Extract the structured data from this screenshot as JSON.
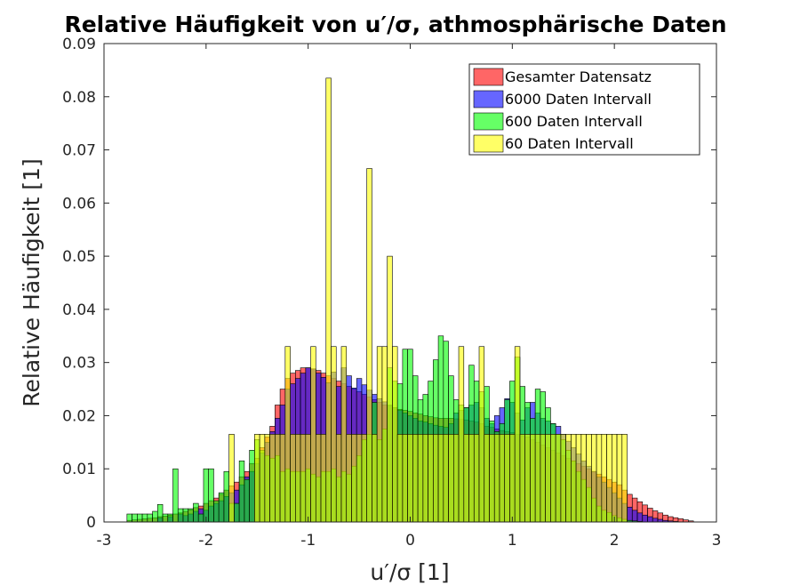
{
  "chart_data": {
    "type": "bar",
    "title": "Relative Häufigkeit von u′/σ, athmosphärische Daten",
    "xlabel": "u′/σ [1]",
    "ylabel": "Relative Häufigkeit [1]",
    "xlim": [
      -3,
      3
    ],
    "ylim": [
      0,
      0.09
    ],
    "xticks": [
      "-3",
      "-2",
      "-1",
      "0",
      "1",
      "2",
      "3"
    ],
    "yticks": [
      "0",
      "0.01",
      "0.02",
      "0.03",
      "0.04",
      "0.05",
      "0.06",
      "0.07",
      "0.08",
      "0.09"
    ],
    "grid": false,
    "legend_position": "top-right",
    "series": [
      {
        "name": "Gesamter Datensatz",
        "color": "#ff0000",
        "opacity": 0.6,
        "bin_width": 0.05,
        "x": [
          -2.75,
          -2.7,
          -2.65,
          -2.6,
          -2.55,
          -2.5,
          -2.45,
          -2.4,
          -2.35,
          -2.3,
          -2.25,
          -2.2,
          -2.15,
          -2.1,
          -2.05,
          -2.0,
          -1.95,
          -1.9,
          -1.85,
          -1.8,
          -1.75,
          -1.7,
          -1.65,
          -1.6,
          -1.55,
          -1.5,
          -1.45,
          -1.4,
          -1.35,
          -1.3,
          -1.25,
          -1.2,
          -1.15,
          -1.1,
          -1.05,
          -1.0,
          -0.95,
          -0.9,
          -0.85,
          -0.8,
          -0.75,
          -0.7,
          -0.65,
          -0.6,
          -0.55,
          -0.5,
          -0.45,
          -0.4,
          -0.35,
          -0.3,
          -0.25,
          -0.2,
          -0.15,
          -0.1,
          -0.05,
          0.0,
          0.05,
          0.1,
          0.15,
          0.2,
          0.25,
          0.3,
          0.35,
          0.4,
          0.45,
          0.5,
          0.55,
          0.6,
          0.65,
          0.7,
          0.75,
          0.8,
          0.85,
          0.9,
          0.95,
          1.0,
          1.05,
          1.1,
          1.15,
          1.2,
          1.25,
          1.3,
          1.35,
          1.4,
          1.45,
          1.5,
          1.55,
          1.6,
          1.65,
          1.7,
          1.75,
          1.8,
          1.85,
          1.9,
          1.95,
          2.0,
          2.05,
          2.1,
          2.15,
          2.2,
          2.25,
          2.3,
          2.35,
          2.4,
          2.45,
          2.5,
          2.55,
          2.6,
          2.65,
          2.7,
          2.75
        ],
        "values": [
          0.0003,
          0.0004,
          0.0005,
          0.0006,
          0.0007,
          0.0008,
          0.001,
          0.0011,
          0.0013,
          0.0015,
          0.0017,
          0.002,
          0.0023,
          0.0027,
          0.003,
          0.0035,
          0.004,
          0.0045,
          0.0052,
          0.006,
          0.0068,
          0.0075,
          0.0085,
          0.0095,
          0.011,
          0.012,
          0.014,
          0.016,
          0.018,
          0.022,
          0.025,
          0.027,
          0.028,
          0.0285,
          0.029,
          0.029,
          0.0288,
          0.0285,
          0.028,
          0.0275,
          0.027,
          0.0265,
          0.026,
          0.0255,
          0.025,
          0.0245,
          0.024,
          0.0235,
          0.023,
          0.0225,
          0.022,
          0.0218,
          0.0215,
          0.0212,
          0.021,
          0.0208,
          0.0205,
          0.0203,
          0.02,
          0.0198,
          0.0196,
          0.0195,
          0.0195,
          0.0195,
          0.0194,
          0.0193,
          0.0192,
          0.019,
          0.0188,
          0.0185,
          0.018,
          0.0178,
          0.0175,
          0.0172,
          0.017,
          0.0168,
          0.0165,
          0.0162,
          0.016,
          0.0155,
          0.015,
          0.0145,
          0.014,
          0.0135,
          0.013,
          0.0125,
          0.012,
          0.0115,
          0.011,
          0.0105,
          0.01,
          0.0095,
          0.009,
          0.0085,
          0.008,
          0.0075,
          0.007,
          0.006,
          0.0052,
          0.0045,
          0.0038,
          0.0032,
          0.0026,
          0.0021,
          0.0017,
          0.0013,
          0.001,
          0.0008,
          0.0006,
          0.0004,
          0.0002
        ]
      },
      {
        "name": "6000 Daten Intervall",
        "color": "#0000ff",
        "opacity": 0.6,
        "bin_width": 0.05,
        "x": [
          -2.75,
          -2.7,
          -2.65,
          -2.6,
          -2.55,
          -2.5,
          -2.45,
          -2.4,
          -2.35,
          -2.3,
          -2.25,
          -2.2,
          -2.15,
          -2.1,
          -2.05,
          -2.0,
          -1.95,
          -1.9,
          -1.85,
          -1.8,
          -1.75,
          -1.7,
          -1.65,
          -1.6,
          -1.55,
          -1.5,
          -1.45,
          -1.4,
          -1.35,
          -1.3,
          -1.25,
          -1.2,
          -1.15,
          -1.1,
          -1.05,
          -1.0,
          -0.95,
          -0.9,
          -0.85,
          -0.8,
          -0.75,
          -0.7,
          -0.65,
          -0.6,
          -0.55,
          -0.5,
          -0.45,
          -0.4,
          -0.35,
          -0.3,
          -0.25,
          -0.2,
          -0.15,
          -0.1,
          -0.05,
          0.0,
          0.05,
          0.1,
          0.15,
          0.2,
          0.25,
          0.3,
          0.35,
          0.4,
          0.45,
          0.5,
          0.55,
          0.6,
          0.65,
          0.7,
          0.75,
          0.8,
          0.85,
          0.9,
          0.95,
          1.0,
          1.05,
          1.1,
          1.15,
          1.2,
          1.25,
          1.3,
          1.35,
          1.4,
          1.45,
          1.5,
          1.55,
          1.6,
          1.65,
          1.7,
          1.75,
          1.8,
          1.85,
          1.9,
          1.95,
          2.0,
          2.05,
          2.1,
          2.15,
          2.2,
          2.25,
          2.3,
          2.35,
          2.4,
          2.45,
          2.5,
          2.55,
          2.6,
          2.65,
          2.7,
          2.75
        ],
        "values": [
          0,
          0,
          0,
          0,
          0,
          0,
          0.0008,
          0,
          0.001,
          0,
          0.0015,
          0.0012,
          0.0015,
          0.002,
          0.0025,
          0.0022,
          0.003,
          0.0035,
          0.004,
          0.0048,
          0.0055,
          0.006,
          0.007,
          0.0085,
          0.0095,
          0.011,
          0.013,
          0.015,
          0.017,
          0.0195,
          0.022,
          0.025,
          0.026,
          0.027,
          0.028,
          0.029,
          0.0288,
          0.028,
          0.0272,
          0.0262,
          0.0282,
          0.0255,
          0.029,
          0.0275,
          0.0252,
          0.027,
          0.0258,
          0.0248,
          0.024,
          0.0232,
          0.0226,
          0.022,
          0.0215,
          0.021,
          0.0205,
          0.02,
          0.0195,
          0.019,
          0.0188,
          0.0185,
          0.0182,
          0.018,
          0.0178,
          0.0185,
          0.0205,
          0.021,
          0.0215,
          0.022,
          0.0225,
          0.0215,
          0.0195,
          0.0185,
          0.02,
          0.0215,
          0.0232,
          0.0225,
          0.0205,
          0.0192,
          0.0215,
          0.0225,
          0.0205,
          0.0195,
          0.019,
          0.0185,
          0.018,
          0.0165,
          0.0152,
          0.014,
          0.0128,
          0.0115,
          0.0105,
          0.0095,
          0.0085,
          0.0075,
          0.0065,
          0.0055,
          0.0045,
          0.0035,
          0.0028,
          0.0022,
          0.0017,
          0.0013,
          0.001,
          0.0007,
          0.0005,
          0.0003,
          0.0002,
          0.0001,
          0,
          0,
          0
        ]
      },
      {
        "name": "600 Daten Intervall",
        "color": "#00ff00",
        "opacity": 0.6,
        "bin_width": 0.05,
        "x": [
          -2.75,
          -2.7,
          -2.65,
          -2.6,
          -2.55,
          -2.5,
          -2.45,
          -2.4,
          -2.35,
          -2.3,
          -2.25,
          -2.2,
          -2.15,
          -2.1,
          -2.05,
          -2.0,
          -1.95,
          -1.9,
          -1.85,
          -1.8,
          -1.75,
          -1.7,
          -1.65,
          -1.6,
          -1.55,
          -1.5,
          -1.45,
          -1.4,
          -1.35,
          -1.3,
          -1.25,
          -1.2,
          -1.15,
          -1.1,
          -1.05,
          -1.0,
          -0.95,
          -0.9,
          -0.85,
          -0.8,
          -0.75,
          -0.7,
          -0.65,
          -0.6,
          -0.55,
          -0.5,
          -0.45,
          -0.4,
          -0.35,
          -0.3,
          -0.25,
          -0.2,
          -0.15,
          -0.1,
          -0.05,
          0.0,
          0.05,
          0.1,
          0.15,
          0.2,
          0.25,
          0.3,
          0.35,
          0.4,
          0.45,
          0.5,
          0.55,
          0.6,
          0.65,
          0.7,
          0.75,
          0.8,
          0.85,
          0.9,
          0.95,
          1.0,
          1.05,
          1.1,
          1.15,
          1.2,
          1.25,
          1.3,
          1.35,
          1.4,
          1.45,
          1.5,
          1.55,
          1.6,
          1.65,
          1.7,
          1.75,
          1.8,
          1.85,
          1.9,
          1.95,
          2.0,
          2.05,
          2.1,
          2.15,
          2.2,
          2.25,
          2.3,
          2.35,
          2.4,
          2.45,
          2.5,
          2.55,
          2.6,
          2.65,
          2.7,
          2.75
        ],
        "values": [
          0.0015,
          0.0015,
          0.0015,
          0.0015,
          0.0015,
          0.002,
          0.0033,
          0.0015,
          0.0015,
          0.01,
          0.0025,
          0.0025,
          0.0025,
          0.0035,
          0.0015,
          0.01,
          0.01,
          0.004,
          0.0055,
          0.0095,
          0.0035,
          0.0035,
          0.0115,
          0.008,
          0.0135,
          0.0155,
          0.0135,
          0.0125,
          0.012,
          0.0125,
          0.0095,
          0.01,
          0.0095,
          0.0095,
          0.0095,
          0.01,
          0.009,
          0.0085,
          0.0095,
          0.0095,
          0.01,
          0.0085,
          0.0095,
          0.009,
          0.0105,
          0.0125,
          0.0155,
          0.0165,
          0.0225,
          0.0155,
          0.0175,
          0.029,
          0.0265,
          0.026,
          0.0325,
          0.0325,
          0.0275,
          0.023,
          0.024,
          0.0265,
          0.0305,
          0.035,
          0.034,
          0.0275,
          0.023,
          0.022,
          0.0215,
          0.0295,
          0.0265,
          0.0245,
          0.0255,
          0.019,
          0.017,
          0.0185,
          0.023,
          0.0265,
          0.031,
          0.0255,
          0.0225,
          0.0195,
          0.025,
          0.0245,
          0.0215,
          0.0185,
          0.0165,
          0.0155,
          0.0135,
          0.0115,
          0.0095,
          0.008,
          0.0065,
          0.0045,
          0.003,
          0.0022,
          0.0018,
          0.0012,
          0.0008,
          0.0005,
          0.0003,
          0.0002,
          0.0001,
          0,
          0,
          0,
          0,
          0,
          0,
          0,
          0,
          0,
          0
        ]
      },
      {
        "name": "60 Daten Intervall",
        "color": "#ffff00",
        "opacity": 0.6,
        "bin_width": 0.05,
        "x": [
          -2.75,
          -2.7,
          -2.65,
          -2.6,
          -2.55,
          -2.5,
          -2.45,
          -2.4,
          -2.35,
          -2.3,
          -2.25,
          -2.2,
          -2.15,
          -2.1,
          -2.05,
          -2.0,
          -1.95,
          -1.9,
          -1.85,
          -1.8,
          -1.75,
          -1.7,
          -1.65,
          -1.6,
          -1.55,
          -1.5,
          -1.45,
          -1.4,
          -1.35,
          -1.3,
          -1.25,
          -1.2,
          -1.15,
          -1.1,
          -1.05,
          -1.0,
          -0.95,
          -0.9,
          -0.85,
          -0.8,
          -0.75,
          -0.7,
          -0.65,
          -0.6,
          -0.55,
          -0.5,
          -0.45,
          -0.4,
          -0.35,
          -0.3,
          -0.25,
          -0.2,
          -0.15,
          -0.1,
          -0.05,
          0.0,
          0.05,
          0.1,
          0.15,
          0.2,
          0.25,
          0.3,
          0.35,
          0.4,
          0.45,
          0.5,
          0.55,
          0.6,
          0.65,
          0.7,
          0.75,
          0.8,
          0.85,
          0.9,
          0.95,
          1.0,
          1.05,
          1.1,
          1.15,
          1.2,
          1.25,
          1.3,
          1.35,
          1.4,
          1.45,
          1.5,
          1.55,
          1.6,
          1.65,
          1.7,
          1.75,
          1.8,
          1.85,
          1.9,
          1.95,
          2.0,
          2.05,
          2.1,
          2.15,
          2.2,
          2.25,
          2.3,
          2.35,
          2.4,
          2.45,
          2.5,
          2.55,
          2.6,
          2.65,
          2.7,
          2.75
        ],
        "values": [
          0,
          0,
          0,
          0,
          0,
          0,
          0,
          0,
          0,
          0,
          0,
          0,
          0,
          0,
          0,
          0,
          0,
          0,
          0,
          0,
          0.0165,
          0,
          0,
          0,
          0,
          0.0165,
          0.0165,
          0.0165,
          0.0165,
          0.0165,
          0.0165,
          0.033,
          0.0165,
          0.0165,
          0.0165,
          0.0165,
          0.033,
          0.0165,
          0.0165,
          0.0835,
          0.033,
          0.0165,
          0.033,
          0.0165,
          0.0165,
          0.0165,
          0.0165,
          0.0665,
          0.0165,
          0.033,
          0.033,
          0.05,
          0.033,
          0.0165,
          0.0165,
          0.0165,
          0.0165,
          0.0165,
          0.0165,
          0.0165,
          0.0165,
          0.0165,
          0.0165,
          0.0165,
          0.0165,
          0.033,
          0.0165,
          0.0165,
          0.0165,
          0.033,
          0.0165,
          0.0165,
          0.0165,
          0.0165,
          0.0165,
          0.0165,
          0.033,
          0.0165,
          0.0165,
          0.0165,
          0.0165,
          0.0165,
          0.0165,
          0.0165,
          0.0165,
          0.0165,
          0.0165,
          0.0165,
          0.0165,
          0.0165,
          0.0165,
          0.0165,
          0.0165,
          0.0165,
          0.0165,
          0.0165,
          0.0165,
          0.0165,
          0,
          0,
          0,
          0,
          0,
          0,
          0,
          0,
          0,
          0,
          0,
          0,
          0
        ]
      }
    ]
  }
}
